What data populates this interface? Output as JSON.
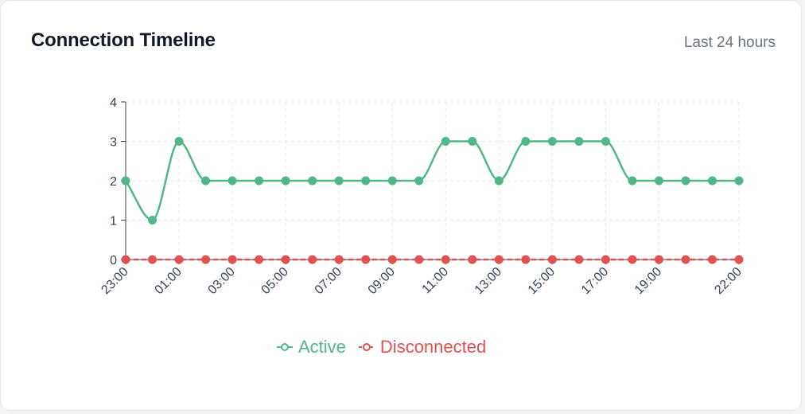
{
  "header": {
    "title": "Connection Timeline",
    "subtitle": "Last 24 hours"
  },
  "colors": {
    "active": "#52b788",
    "disconnected": "#e05252",
    "grid": "#e5e7eb",
    "axis": "#374151"
  },
  "chart_data": {
    "type": "line",
    "title": "",
    "xlabel": "",
    "ylabel": "",
    "ylim": [
      0,
      4
    ],
    "yticks": [
      0,
      1,
      2,
      3,
      4
    ],
    "categories": [
      "23:00",
      "00:00",
      "01:00",
      "02:00",
      "03:00",
      "04:00",
      "05:00",
      "06:00",
      "07:00",
      "08:00",
      "09:00",
      "10:00",
      "11:00",
      "12:00",
      "13:00",
      "14:00",
      "15:00",
      "16:00",
      "17:00",
      "18:00",
      "19:00",
      "20:00",
      "21:00",
      "22:00"
    ],
    "tick_labels_shown": [
      "23:00",
      "01:00",
      "03:00",
      "05:00",
      "07:00",
      "09:00",
      "11:00",
      "13:00",
      "15:00",
      "17:00",
      "19:00",
      "22:00"
    ],
    "grid": true,
    "legend_position": "bottom",
    "series": [
      {
        "name": "Active",
        "color_key": "active",
        "style": "solid",
        "values": [
          2,
          1,
          3,
          2,
          2,
          2,
          2,
          2,
          2,
          2,
          2,
          2,
          3,
          3,
          2,
          3,
          3,
          3,
          3,
          2,
          2,
          2,
          2,
          2
        ]
      },
      {
        "name": "Disconnected",
        "color_key": "disconnected",
        "style": "dashed",
        "values": [
          0,
          0,
          0,
          0,
          0,
          0,
          0,
          0,
          0,
          0,
          0,
          0,
          0,
          0,
          0,
          0,
          0,
          0,
          0,
          0,
          0,
          0,
          0,
          0
        ]
      }
    ]
  }
}
